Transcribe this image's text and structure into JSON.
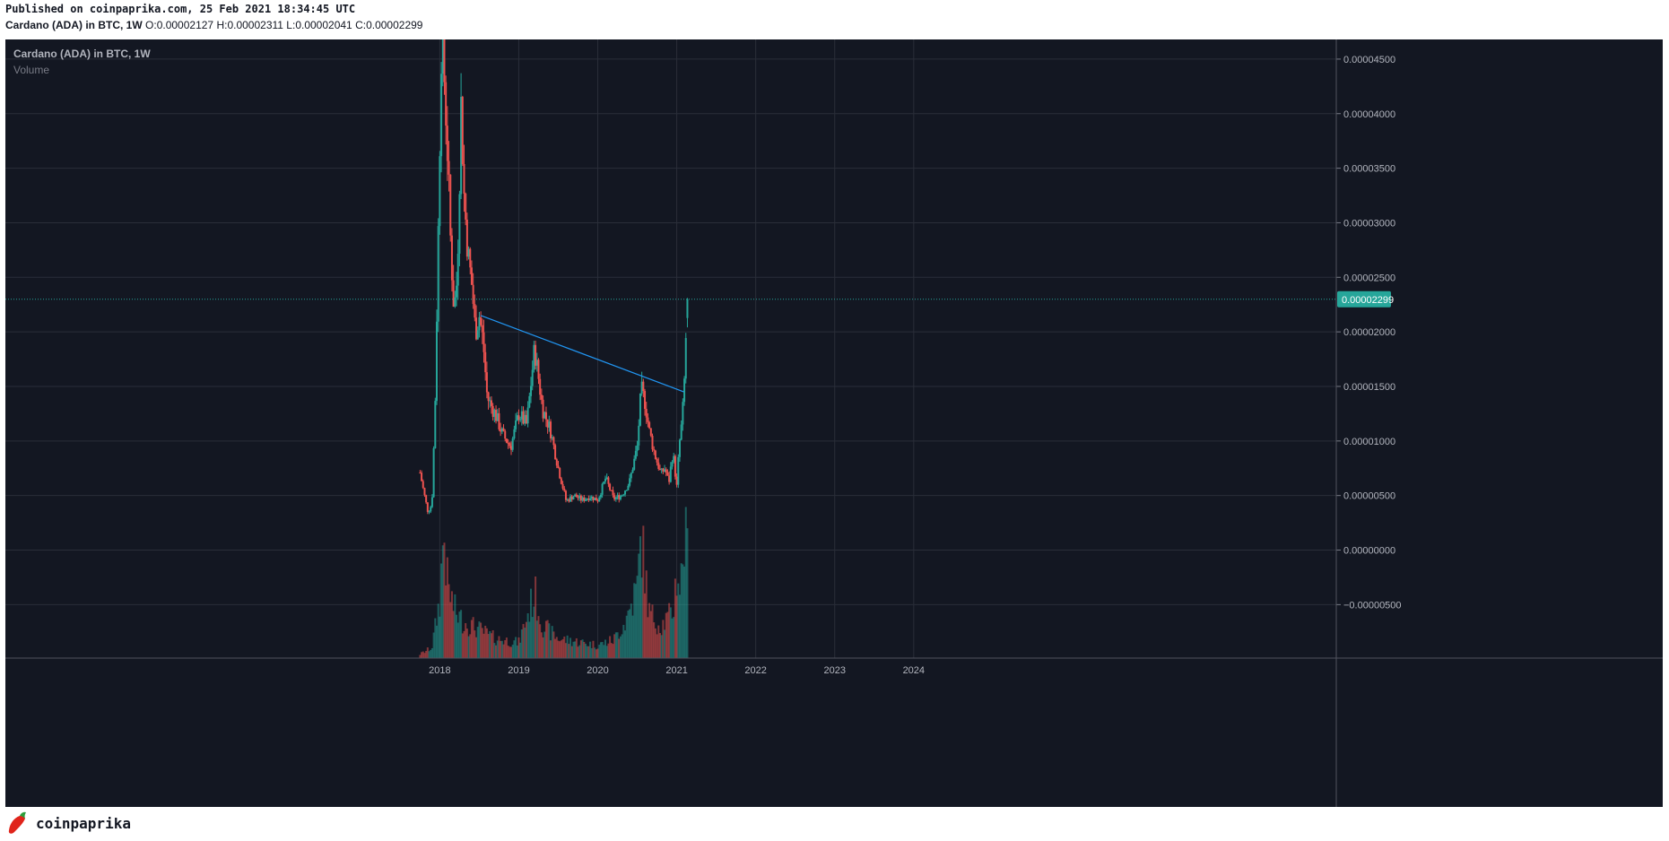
{
  "header": {
    "published": "Published on coinpaprika.com, 25 Feb 2021 18:34:45 UTC",
    "symbol": "Cardano (ADA) in BTC, 1W",
    "ohlc": [
      {
        "k": "O:",
        "v": "0.00002127"
      },
      {
        "k": "H:",
        "v": "0.00002311"
      },
      {
        "k": "L:",
        "v": "0.00002041"
      },
      {
        "k": "C:",
        "v": "0.00002299"
      }
    ]
  },
  "chart_data": {
    "type": "candlestick",
    "title": "Cardano (ADA) in BTC, 1W",
    "legend": [
      "Cardano (ADA) in BTC, 1W",
      "Volume"
    ],
    "x_ticks": [
      "2018",
      "2019",
      "2020",
      "2021",
      "2022",
      "2023",
      "2024"
    ],
    "x_range": [
      2012.5,
      2029.35
    ],
    "y_ticks": [
      "0.00004500",
      "0.00004000",
      "0.00003500",
      "0.00003000",
      "0.00002500",
      "0.00002000",
      "0.00001500",
      "0.00001000",
      "0.00000500",
      "0.00000000",
      "−0.00000500"
    ],
    "y_range": [
      -9.9e-06,
      4.68e-05
    ],
    "grid": true,
    "last_price": {
      "label": "0.00002299",
      "value": 2.299e-05
    },
    "colors": {
      "up": "#26a69a",
      "down": "#ef5350",
      "trendline": "#2196f3",
      "background": "#131722",
      "grid": "#2a2e39",
      "axis_text": "#b2b5be",
      "price_tag": "#26a69a"
    },
    "trendline": {
      "from": [
        2018.52,
        2.15e-05
      ],
      "to": [
        2021.09,
        1.45e-05
      ]
    },
    "close_keyframes": [
      [
        2017.75,
        7.1e-06
      ],
      [
        2017.8,
        5.2e-06
      ],
      [
        2017.85,
        3.5e-06
      ],
      [
        2017.9,
        4.2e-06
      ],
      [
        2017.94,
        1.3e-05
      ],
      [
        2017.98,
        2.9e-05
      ],
      [
        2018.02,
        4.65e-05
      ],
      [
        2018.06,
        4.3e-05
      ],
      [
        2018.1,
        3.6e-05
      ],
      [
        2018.14,
        2.75e-05
      ],
      [
        2018.18,
        2.2e-05
      ],
      [
        2018.22,
        2.5e-05
      ],
      [
        2018.27,
        4.1e-05
      ],
      [
        2018.31,
        3.2e-05
      ],
      [
        2018.36,
        2.7e-05
      ],
      [
        2018.41,
        2.4e-05
      ],
      [
        2018.45,
        2e-05
      ],
      [
        2018.5,
        2.15e-05
      ],
      [
        2018.55,
        1.9e-05
      ],
      [
        2018.6,
        1.4e-05
      ],
      [
        2018.7,
        1.25e-05
      ],
      [
        2018.8,
        1.05e-05
      ],
      [
        2018.9,
        9.5e-06
      ],
      [
        2019.0,
        1.25e-05
      ],
      [
        2019.1,
        1.15e-05
      ],
      [
        2019.2,
        1.85e-05
      ],
      [
        2019.3,
        1.3e-05
      ],
      [
        2019.4,
        1.1e-05
      ],
      [
        2019.5,
        7.5e-06
      ],
      [
        2019.6,
        4.5e-06
      ],
      [
        2019.7,
        5e-06
      ],
      [
        2019.8,
        4.6e-06
      ],
      [
        2019.9,
        4.9e-06
      ],
      [
        2020.0,
        4.6e-06
      ],
      [
        2020.1,
        6.6e-06
      ],
      [
        2020.2,
        4.7e-06
      ],
      [
        2020.3,
        5e-06
      ],
      [
        2020.4,
        6.2e-06
      ],
      [
        2020.5,
        9.5e-06
      ],
      [
        2020.55,
        1.48e-05
      ],
      [
        2020.6,
        1.35e-05
      ],
      [
        2020.65,
        1.1e-05
      ],
      [
        2020.72,
        8.8e-06
      ],
      [
        2020.8,
        7e-06
      ],
      [
        2020.85,
        7.5e-06
      ],
      [
        2020.9,
        6.2e-06
      ],
      [
        2020.95,
        9e-06
      ],
      [
        2021.0,
        5.8e-06
      ],
      [
        2021.03,
        9.5e-06
      ],
      [
        2021.07,
        1.2e-05
      ],
      [
        2021.1,
        1.6e-05
      ],
      [
        2021.12,
        2.05e-05
      ],
      [
        2021.15,
        2.3e-05
      ]
    ],
    "volume_keyframes": [
      [
        2017.75,
        0.03
      ],
      [
        2017.9,
        0.08
      ],
      [
        2018.0,
        0.45
      ],
      [
        2018.05,
        1.0
      ],
      [
        2018.1,
        0.55
      ],
      [
        2018.2,
        0.35
      ],
      [
        2018.3,
        0.28
      ],
      [
        2018.5,
        0.22
      ],
      [
        2018.7,
        0.15
      ],
      [
        2019.0,
        0.12
      ],
      [
        2019.2,
        0.5
      ],
      [
        2019.3,
        0.25
      ],
      [
        2019.5,
        0.15
      ],
      [
        2019.8,
        0.12
      ],
      [
        2020.0,
        0.1
      ],
      [
        2020.2,
        0.14
      ],
      [
        2020.35,
        0.28
      ],
      [
        2020.5,
        0.55
      ],
      [
        2020.55,
        0.95
      ],
      [
        2020.65,
        0.35
      ],
      [
        2020.8,
        0.25
      ],
      [
        2020.95,
        0.35
      ],
      [
        2021.0,
        0.65
      ],
      [
        2021.05,
        0.55
      ],
      [
        2021.1,
        0.95
      ],
      [
        2021.15,
        0.75
      ]
    ]
  },
  "branding": {
    "logo_text": "coinpaprika",
    "icon": "chili-pepper-icon"
  }
}
